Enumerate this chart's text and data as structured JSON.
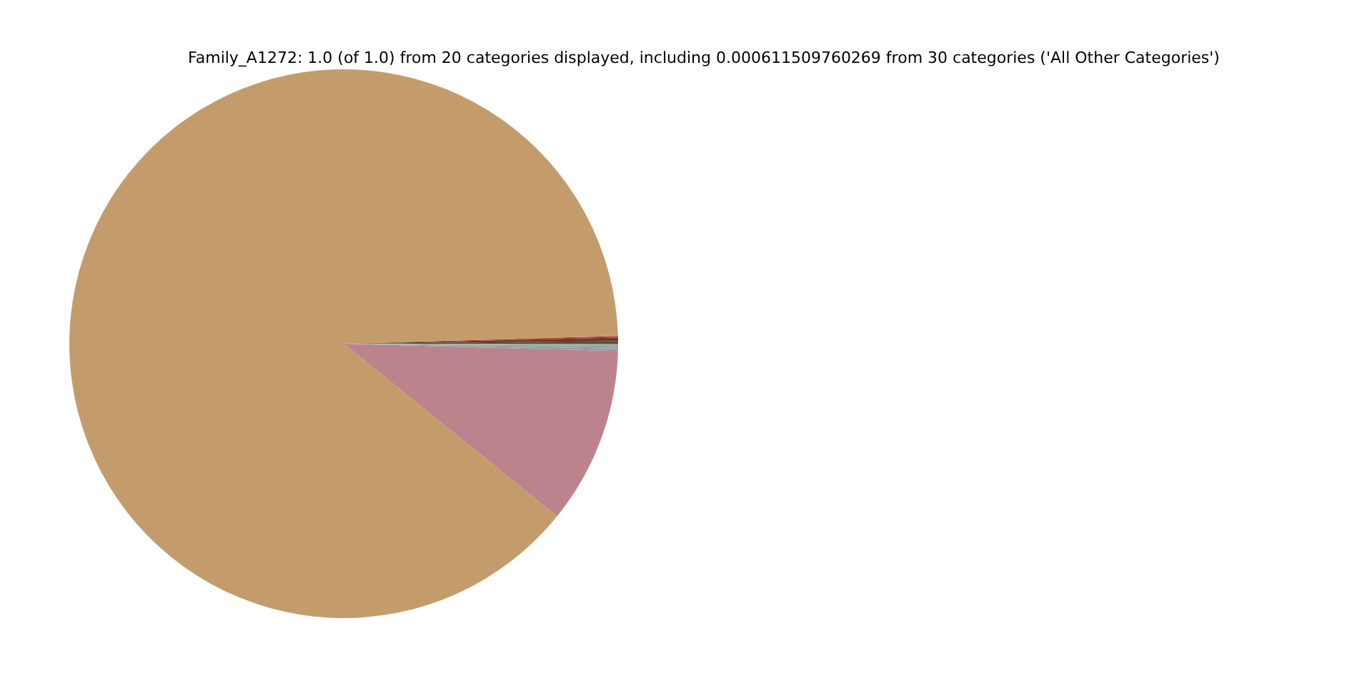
{
  "chart_data": {
    "type": "pie",
    "title": "Family_A1272: 1.0 (of 1.0) from 20 categories displayed, including 0.000611509760269 from 30 categories ('All Other Categories')",
    "categories": [
      null,
      null,
      null,
      null,
      null,
      null,
      null,
      null,
      null
    ],
    "values": [
      0.15,
      0.2,
      0.1,
      88.72,
      10.4,
      0.15,
      0.15,
      0.1,
      0.03
    ],
    "colors": [
      "#5a4a3c",
      "#6b3a2a",
      "#b03a2e",
      "#c49c6c",
      "#bd838d",
      "#9a9a9a",
      "#8fa3b8",
      "#9bb07a",
      "#7f7f7f"
    ]
  }
}
